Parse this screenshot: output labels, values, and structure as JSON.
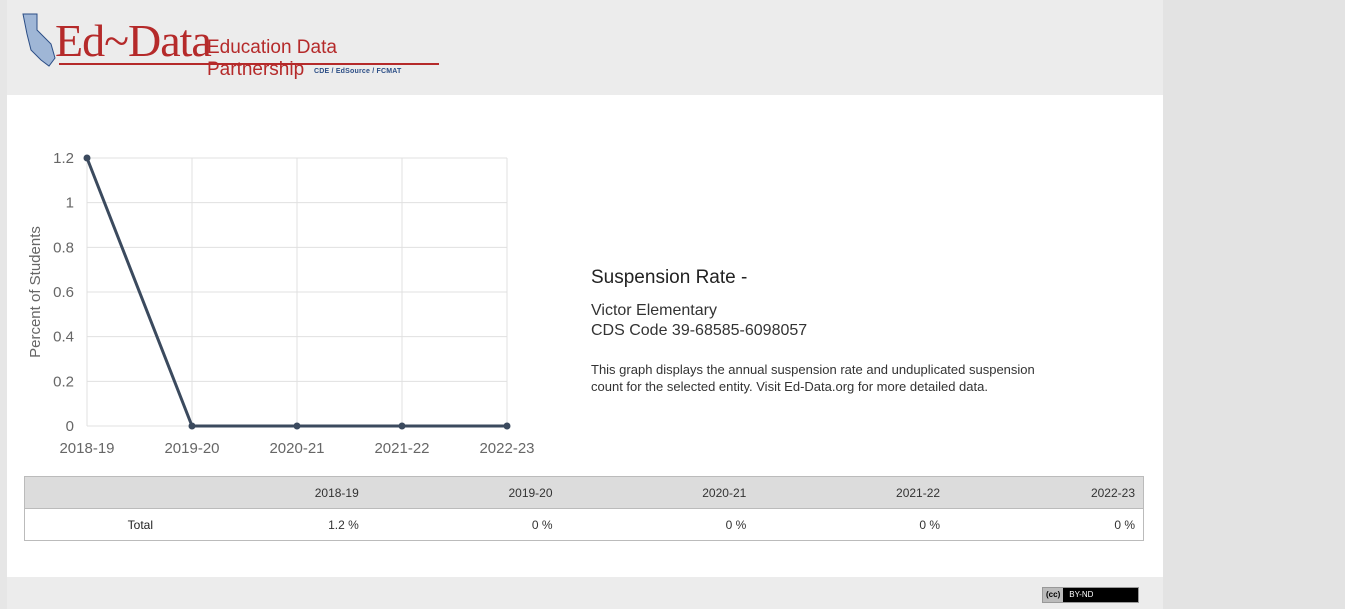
{
  "header": {
    "logo_main": "Ed~Data",
    "logo_sub": "Education Data Partnership",
    "logo_tag": "CDE / EdSource / FCMAT"
  },
  "info": {
    "title": "Suspension Rate -",
    "school_name": "Victor Elementary",
    "cds_code": "CDS Code 39-68585-6098057",
    "description": "This graph displays the annual suspension rate and unduplicated suspension count for the selected entity. Visit Ed-Data.org for more detailed data."
  },
  "table": {
    "headers": [
      "",
      "2018-19",
      "2019-20",
      "2020-21",
      "2021-22",
      "2022-23"
    ],
    "rows": [
      [
        "Total",
        "1.2 %",
        "0 %",
        "0 %",
        "0 %",
        "0 %"
      ]
    ]
  },
  "footer": {
    "cc_label": "(cc)",
    "license_label": "BY-ND"
  },
  "colors": {
    "line": "#3b4a5e",
    "grid": "#e0e0e0",
    "logo": "#b52a2a",
    "tag": "#2c4e86"
  },
  "chart_data": {
    "type": "line",
    "x": [
      "2018-19",
      "2019-20",
      "2020-21",
      "2021-22",
      "2022-23"
    ],
    "series": [
      {
        "values": [
          1.2,
          0,
          0,
          0,
          0
        ]
      }
    ],
    "ylabel": "Percent of Students",
    "ylim": [
      0,
      1.2
    ],
    "yticks": [
      0,
      0.2,
      0.4,
      0.6,
      0.8,
      1,
      1.2
    ],
    "grid": true,
    "legend": "none"
  }
}
